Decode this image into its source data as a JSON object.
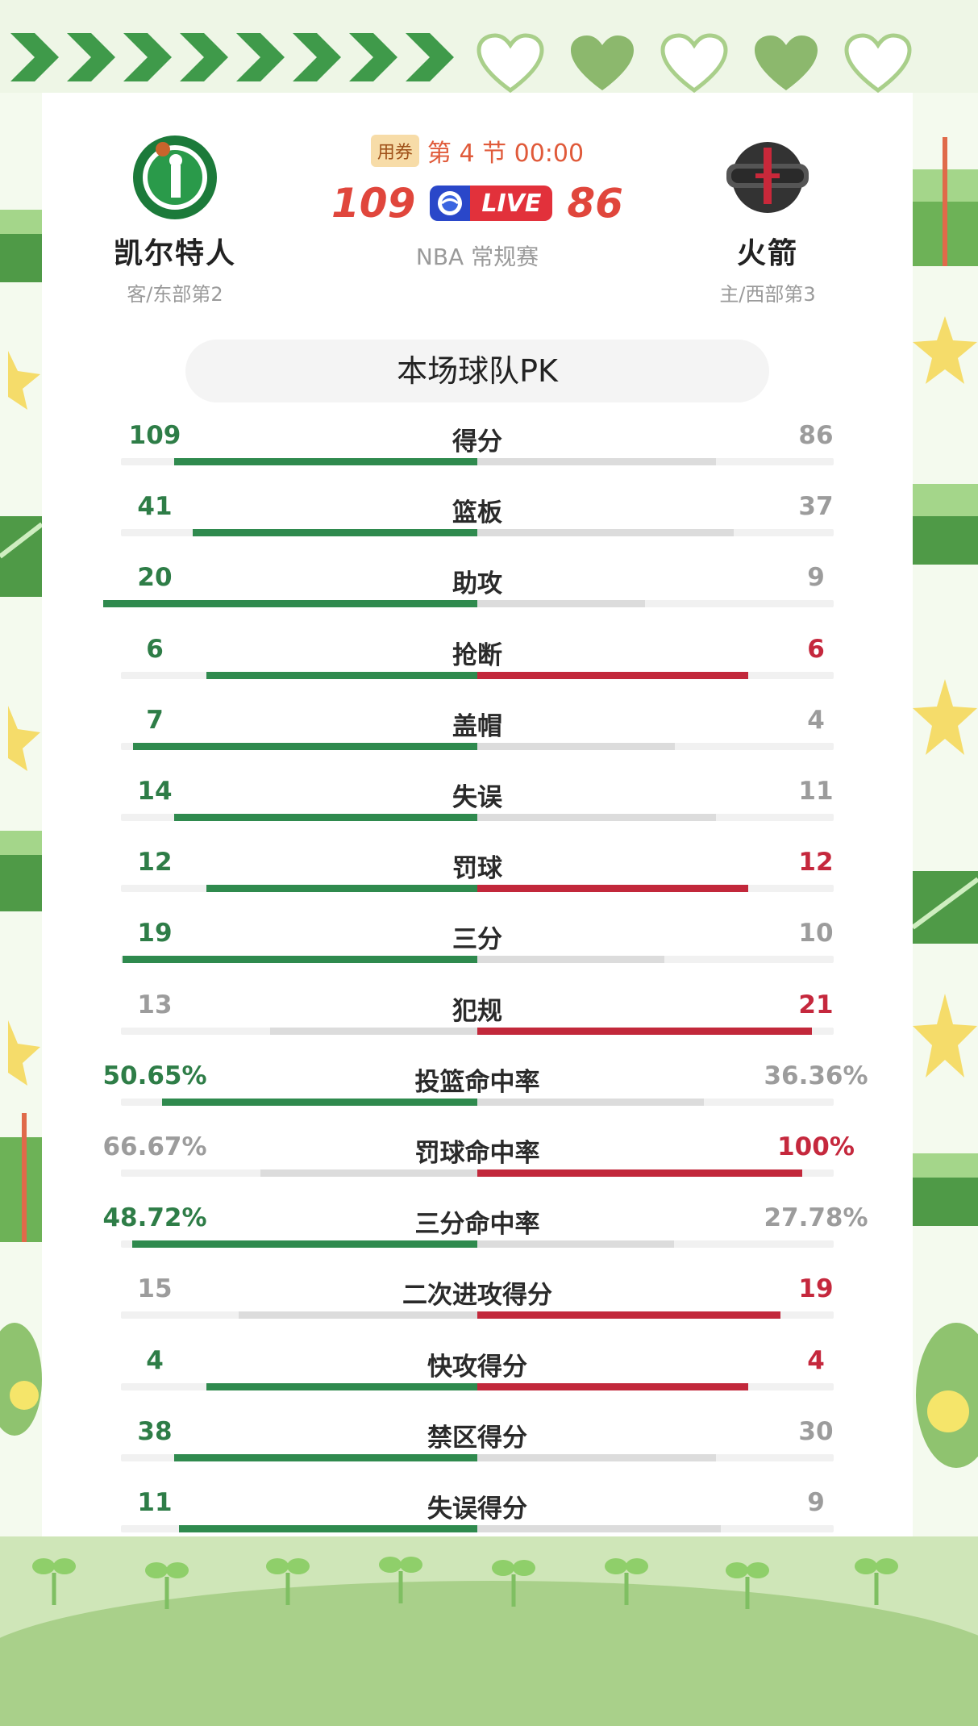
{
  "game": {
    "coupon": "用券",
    "period": "第 4 节 00:00",
    "away_score": "109",
    "home_score": "86",
    "live": "LIVE",
    "league": "NBA 常规赛"
  },
  "away_team": {
    "name": "凯尔特人",
    "standing": "客/东部第2",
    "logo": "celtics-logo"
  },
  "home_team": {
    "name": "火箭",
    "standing": "主/西部第3",
    "logo": "rockets-logo"
  },
  "pk_title": "本场球队PK",
  "stats": [
    {
      "label": "得分",
      "away": "109",
      "home": "86",
      "away_share": 0.559,
      "home_share": 0.441,
      "away_color": "green",
      "home_color": "grey"
    },
    {
      "label": "篮板",
      "away": "41",
      "home": "37",
      "away_share": 0.526,
      "home_share": 0.474,
      "away_color": "green",
      "home_color": "grey"
    },
    {
      "label": "助攻",
      "away": "20",
      "home": "9",
      "away_share": 0.69,
      "home_share": 0.31,
      "away_color": "green",
      "home_color": "grey"
    },
    {
      "label": "抢断",
      "away": "6",
      "home": "6",
      "away_share": 0.5,
      "home_share": 0.5,
      "away_color": "green",
      "home_color": "red"
    },
    {
      "label": "盖帽",
      "away": "7",
      "home": "4",
      "away_share": 0.636,
      "home_share": 0.364,
      "away_color": "green",
      "home_color": "grey"
    },
    {
      "label": "失误",
      "away": "14",
      "home": "11",
      "away_share": 0.56,
      "home_share": 0.44,
      "away_color": "green",
      "home_color": "grey"
    },
    {
      "label": "罚球",
      "away": "12",
      "home": "12",
      "away_share": 0.5,
      "home_share": 0.5,
      "away_color": "green",
      "home_color": "red"
    },
    {
      "label": "三分",
      "away": "19",
      "home": "10",
      "away_share": 0.655,
      "home_share": 0.345,
      "away_color": "green",
      "home_color": "grey"
    },
    {
      "label": "犯规",
      "away": "13",
      "home": "21",
      "away_share": 0.382,
      "home_share": 0.618,
      "away_color": "grey",
      "home_color": "red"
    },
    {
      "label": "投篮命中率",
      "away": "50.65%",
      "home": "36.36%",
      "away_share": 0.582,
      "home_share": 0.418,
      "away_color": "green",
      "home_color": "grey"
    },
    {
      "label": "罚球命中率",
      "away": "66.67%",
      "home": "100%",
      "away_share": 0.4,
      "home_share": 0.6,
      "away_color": "grey",
      "home_color": "red"
    },
    {
      "label": "三分命中率",
      "away": "48.72%",
      "home": "27.78%",
      "away_share": 0.637,
      "home_share": 0.363,
      "away_color": "green",
      "home_color": "grey"
    },
    {
      "label": "二次进攻得分",
      "away": "15",
      "home": "19",
      "away_share": 0.441,
      "home_share": 0.559,
      "away_color": "grey",
      "home_color": "red"
    },
    {
      "label": "快攻得分",
      "away": "4",
      "home": "4",
      "away_share": 0.5,
      "home_share": 0.5,
      "away_color": "green",
      "home_color": "red"
    },
    {
      "label": "禁区得分",
      "away": "38",
      "home": "30",
      "away_share": 0.559,
      "home_share": 0.441,
      "away_color": "green",
      "home_color": "grey"
    },
    {
      "label": "失误得分",
      "away": "11",
      "home": "9",
      "away_share": 0.55,
      "home_share": 0.45,
      "away_color": "green",
      "home_color": "grey"
    }
  ],
  "colors": {
    "green": "#2f8a4e",
    "red": "#c2283b",
    "grey": "#9c9c9c",
    "score_red": "#e0463c"
  }
}
